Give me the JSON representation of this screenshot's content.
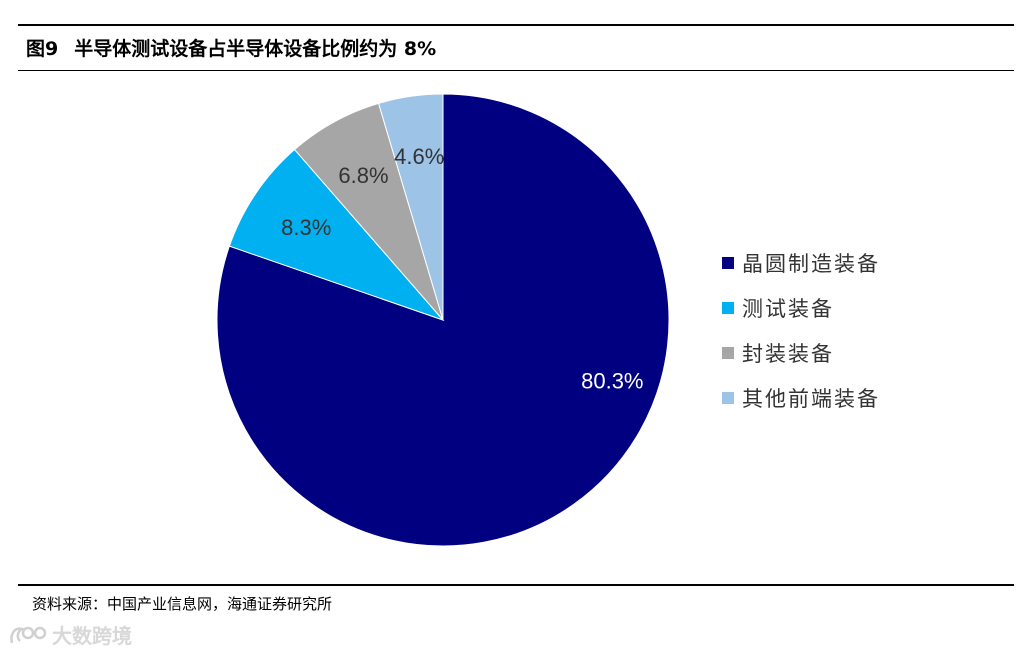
{
  "figure": {
    "number": "图9",
    "title": "半导体测试设备占半导体设备比例约为 8%"
  },
  "chart_data": {
    "type": "pie",
    "start_angle_deg": 0,
    "direction": "clockwise",
    "slices": [
      {
        "name": "晶圆制造装备",
        "value": 80.3,
        "label": "80.3%",
        "color": "#000080"
      },
      {
        "name": "测试装备",
        "value": 8.3,
        "label": "8.3%",
        "color": "#00B0F0"
      },
      {
        "name": "封装装备",
        "value": 6.8,
        "label": "6.8%",
        "color": "#A6A6A6"
      },
      {
        "name": "其他前端装备",
        "value": 4.6,
        "label": "4.6%",
        "color": "#9DC3E6"
      }
    ],
    "legend_position": "right",
    "label_colors": {
      "dark_slice": "#ffffff",
      "light_slice": "#333333"
    }
  },
  "legend": {
    "items": [
      {
        "label": "晶圆制造装备",
        "color": "#000080"
      },
      {
        "label": "测试装备",
        "color": "#00B0F0"
      },
      {
        "label": "封装装备",
        "color": "#A6A6A6"
      },
      {
        "label": "其他前端装备",
        "color": "#9DC3E6"
      }
    ]
  },
  "source": "资料来源：中国产业信息网，海通证券研究所",
  "watermark": {
    "text": "大数跨境",
    "icon": "watermark-logo-icon"
  }
}
